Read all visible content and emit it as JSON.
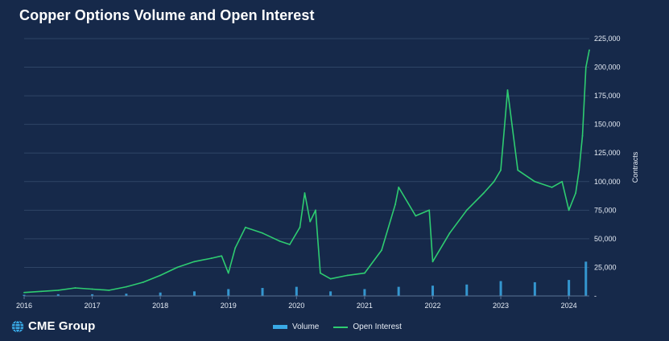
{
  "title": "Copper Options Volume and Open Interest",
  "logo": {
    "text": "CME Group",
    "icon": "globe-icon"
  },
  "legend": {
    "volume": "Volume",
    "open_interest": "Open Interest"
  },
  "colors": {
    "background": "#16294a",
    "grid": "#2f4566",
    "open_interest": "#2ecc71",
    "volume": "#39a9e6",
    "text": "#e6ecf5"
  },
  "chart_data": {
    "type": "line",
    "ylabel": "Contracts",
    "xlabel": "",
    "ylim": [
      0,
      225000
    ],
    "y_ticks": [
      0,
      25000,
      50000,
      75000,
      100000,
      125000,
      150000,
      175000,
      200000,
      225000
    ],
    "y_tick_labels": [
      "-",
      "25,000",
      "50,000",
      "75,000",
      "100,000",
      "125,000",
      "150,000",
      "175,000",
      "200,000",
      "225,000"
    ],
    "x_ticks": [
      "2016",
      "2017",
      "2018",
      "2019",
      "2020",
      "2021",
      "2022",
      "2023",
      "2024"
    ],
    "xlim": [
      2016.0,
      2024.3
    ],
    "grid": true,
    "legend_position": "bottom-center",
    "series": [
      {
        "name": "Open Interest",
        "type": "line",
        "x": [
          2016.0,
          2016.25,
          2016.5,
          2016.75,
          2017.0,
          2017.25,
          2017.5,
          2017.75,
          2018.0,
          2018.25,
          2018.5,
          2018.75,
          2018.9,
          2019.0,
          2019.1,
          2019.25,
          2019.5,
          2019.75,
          2019.9,
          2020.05,
          2020.12,
          2020.2,
          2020.28,
          2020.35,
          2020.5,
          2020.75,
          2021.0,
          2021.25,
          2021.45,
          2021.5,
          2021.75,
          2021.95,
          2022.0,
          2022.25,
          2022.5,
          2022.75,
          2022.9,
          2023.0,
          2023.05,
          2023.1,
          2023.25,
          2023.5,
          2023.75,
          2023.9,
          2024.0,
          2024.1,
          2024.15,
          2024.2,
          2024.25,
          2024.3
        ],
        "y": [
          3000,
          4000,
          5000,
          7000,
          6000,
          5000,
          8000,
          12000,
          18000,
          25000,
          30000,
          33000,
          35000,
          20000,
          42000,
          60000,
          55000,
          48000,
          45000,
          60000,
          90000,
          65000,
          75000,
          20000,
          15000,
          18000,
          20000,
          40000,
          80000,
          95000,
          70000,
          75000,
          30000,
          55000,
          75000,
          90000,
          100000,
          110000,
          145000,
          180000,
          110000,
          100000,
          95000,
          100000,
          75000,
          90000,
          110000,
          140000,
          200000,
          215000
        ]
      },
      {
        "name": "Volume",
        "type": "bar",
        "x": [
          2016.0,
          2016.5,
          2017.0,
          2017.5,
          2018.0,
          2018.5,
          2019.0,
          2019.5,
          2020.0,
          2020.5,
          2021.0,
          2021.5,
          2022.0,
          2022.5,
          2023.0,
          2023.5,
          2024.0,
          2024.25
        ],
        "y": [
          1000,
          1500,
          1500,
          2000,
          3000,
          4000,
          6000,
          7000,
          8000,
          4000,
          6000,
          8000,
          9000,
          10000,
          13000,
          12000,
          14000,
          30000
        ]
      }
    ]
  }
}
